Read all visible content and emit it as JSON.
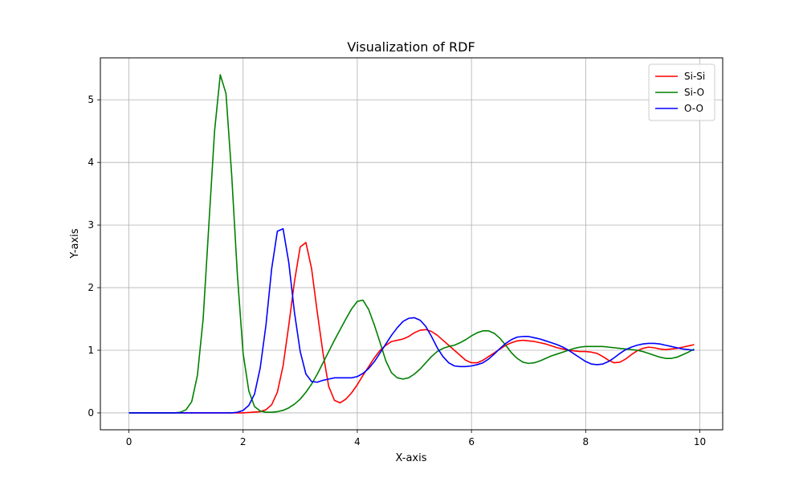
{
  "chart_data": {
    "type": "line",
    "title": "Visualization of RDF",
    "xlabel": "X-axis",
    "ylabel": "Y-axis",
    "xlim": [
      -0.5,
      10.4
    ],
    "ylim": [
      -0.27,
      5.67
    ],
    "xticks": [
      0,
      2,
      4,
      6,
      8,
      10
    ],
    "yticks": [
      0,
      1,
      2,
      3,
      4,
      5
    ],
    "grid": true,
    "legend_position": "top-right",
    "series": [
      {
        "name": "Si-Si",
        "color": "#ff0000",
        "points": [
          [
            0,
            0
          ],
          [
            1,
            0
          ],
          [
            2.0,
            0
          ],
          [
            2.3,
            0.02
          ],
          [
            2.4,
            0.05
          ],
          [
            2.5,
            0.13
          ],
          [
            2.6,
            0.33
          ],
          [
            2.7,
            0.75
          ],
          [
            2.8,
            1.4
          ],
          [
            2.9,
            2.1
          ],
          [
            3.0,
            2.65
          ],
          [
            3.1,
            2.72
          ],
          [
            3.2,
            2.3
          ],
          [
            3.3,
            1.6
          ],
          [
            3.4,
            0.95
          ],
          [
            3.5,
            0.42
          ],
          [
            3.6,
            0.2
          ],
          [
            3.7,
            0.16
          ],
          [
            3.8,
            0.22
          ],
          [
            3.9,
            0.32
          ],
          [
            4.0,
            0.45
          ],
          [
            4.1,
            0.6
          ],
          [
            4.2,
            0.74
          ],
          [
            4.3,
            0.88
          ],
          [
            4.4,
            1.0
          ],
          [
            4.5,
            1.08
          ],
          [
            4.6,
            1.14
          ],
          [
            4.7,
            1.16
          ],
          [
            4.8,
            1.18
          ],
          [
            4.9,
            1.22
          ],
          [
            5.0,
            1.28
          ],
          [
            5.1,
            1.32
          ],
          [
            5.2,
            1.33
          ],
          [
            5.3,
            1.3
          ],
          [
            5.4,
            1.24
          ],
          [
            5.5,
            1.16
          ],
          [
            5.6,
            1.08
          ],
          [
            5.7,
            1.0
          ],
          [
            5.8,
            0.92
          ],
          [
            5.9,
            0.84
          ],
          [
            6.0,
            0.8
          ],
          [
            6.1,
            0.8
          ],
          [
            6.2,
            0.84
          ],
          [
            6.3,
            0.9
          ],
          [
            6.4,
            0.96
          ],
          [
            6.5,
            1.02
          ],
          [
            6.6,
            1.08
          ],
          [
            6.7,
            1.12
          ],
          [
            6.8,
            1.15
          ],
          [
            6.9,
            1.16
          ],
          [
            7.0,
            1.15
          ],
          [
            7.1,
            1.14
          ],
          [
            7.2,
            1.12
          ],
          [
            7.3,
            1.1
          ],
          [
            7.4,
            1.07
          ],
          [
            7.5,
            1.04
          ],
          [
            7.6,
            1.02
          ],
          [
            7.7,
            1.0
          ],
          [
            7.8,
            0.99
          ],
          [
            7.9,
            0.98
          ],
          [
            8.0,
            0.98
          ],
          [
            8.1,
            0.97
          ],
          [
            8.2,
            0.95
          ],
          [
            8.3,
            0.9
          ],
          [
            8.4,
            0.84
          ],
          [
            8.5,
            0.8
          ],
          [
            8.6,
            0.81
          ],
          [
            8.7,
            0.86
          ],
          [
            8.8,
            0.93
          ],
          [
            8.9,
            0.99
          ],
          [
            9.0,
            1.03
          ],
          [
            9.1,
            1.05
          ],
          [
            9.2,
            1.04
          ],
          [
            9.3,
            1.02
          ],
          [
            9.4,
            1.01
          ],
          [
            9.5,
            1.02
          ],
          [
            9.6,
            1.03
          ],
          [
            9.7,
            1.05
          ],
          [
            9.8,
            1.07
          ],
          [
            9.9,
            1.09
          ]
        ]
      },
      {
        "name": "Si-O",
        "color": "#008000",
        "points": [
          [
            0,
            0
          ],
          [
            0.8,
            0
          ],
          [
            0.9,
            0.01
          ],
          [
            1.0,
            0.05
          ],
          [
            1.1,
            0.18
          ],
          [
            1.2,
            0.6
          ],
          [
            1.3,
            1.5
          ],
          [
            1.4,
            3.0
          ],
          [
            1.5,
            4.5
          ],
          [
            1.6,
            5.4
          ],
          [
            1.7,
            5.1
          ],
          [
            1.8,
            3.8
          ],
          [
            1.9,
            2.2
          ],
          [
            2.0,
            0.95
          ],
          [
            2.1,
            0.35
          ],
          [
            2.2,
            0.1
          ],
          [
            2.3,
            0.03
          ],
          [
            2.4,
            0.01
          ],
          [
            2.5,
            0.01
          ],
          [
            2.6,
            0.02
          ],
          [
            2.7,
            0.04
          ],
          [
            2.8,
            0.08
          ],
          [
            2.9,
            0.14
          ],
          [
            3.0,
            0.22
          ],
          [
            3.1,
            0.33
          ],
          [
            3.2,
            0.46
          ],
          [
            3.3,
            0.62
          ],
          [
            3.4,
            0.8
          ],
          [
            3.5,
            0.98
          ],
          [
            3.6,
            1.16
          ],
          [
            3.7,
            1.33
          ],
          [
            3.8,
            1.5
          ],
          [
            3.9,
            1.66
          ],
          [
            4.0,
            1.78
          ],
          [
            4.1,
            1.8
          ],
          [
            4.2,
            1.65
          ],
          [
            4.3,
            1.4
          ],
          [
            4.4,
            1.12
          ],
          [
            4.5,
            0.83
          ],
          [
            4.6,
            0.64
          ],
          [
            4.7,
            0.56
          ],
          [
            4.8,
            0.54
          ],
          [
            4.9,
            0.56
          ],
          [
            5.0,
            0.62
          ],
          [
            5.1,
            0.7
          ],
          [
            5.2,
            0.8
          ],
          [
            5.3,
            0.9
          ],
          [
            5.4,
            0.98
          ],
          [
            5.5,
            1.03
          ],
          [
            5.6,
            1.06
          ],
          [
            5.7,
            1.08
          ],
          [
            5.8,
            1.12
          ],
          [
            5.9,
            1.17
          ],
          [
            6.0,
            1.23
          ],
          [
            6.1,
            1.28
          ],
          [
            6.2,
            1.31
          ],
          [
            6.3,
            1.31
          ],
          [
            6.4,
            1.27
          ],
          [
            6.5,
            1.19
          ],
          [
            6.6,
            1.08
          ],
          [
            6.7,
            0.96
          ],
          [
            6.8,
            0.87
          ],
          [
            6.9,
            0.81
          ],
          [
            7.0,
            0.79
          ],
          [
            7.1,
            0.8
          ],
          [
            7.2,
            0.83
          ],
          [
            7.3,
            0.87
          ],
          [
            7.4,
            0.91
          ],
          [
            7.5,
            0.94
          ],
          [
            7.6,
            0.97
          ],
          [
            7.7,
            1.0
          ],
          [
            7.8,
            1.03
          ],
          [
            7.9,
            1.05
          ],
          [
            8.0,
            1.06
          ],
          [
            8.1,
            1.06
          ],
          [
            8.2,
            1.06
          ],
          [
            8.3,
            1.06
          ],
          [
            8.4,
            1.05
          ],
          [
            8.5,
            1.04
          ],
          [
            8.6,
            1.03
          ],
          [
            8.7,
            1.02
          ],
          [
            8.8,
            1.01
          ],
          [
            8.9,
            1.0
          ],
          [
            9.0,
            0.98
          ],
          [
            9.1,
            0.95
          ],
          [
            9.2,
            0.92
          ],
          [
            9.3,
            0.89
          ],
          [
            9.4,
            0.87
          ],
          [
            9.5,
            0.87
          ],
          [
            9.6,
            0.89
          ],
          [
            9.7,
            0.93
          ],
          [
            9.8,
            0.97
          ],
          [
            9.9,
            1.02
          ]
        ]
      },
      {
        "name": "O-O",
        "color": "#0000ff",
        "points": [
          [
            0,
            0
          ],
          [
            1,
            0
          ],
          [
            1.8,
            0
          ],
          [
            1.9,
            0.01
          ],
          [
            2.0,
            0.04
          ],
          [
            2.1,
            0.12
          ],
          [
            2.2,
            0.3
          ],
          [
            2.3,
            0.72
          ],
          [
            2.4,
            1.4
          ],
          [
            2.5,
            2.3
          ],
          [
            2.6,
            2.9
          ],
          [
            2.7,
            2.94
          ],
          [
            2.8,
            2.4
          ],
          [
            2.9,
            1.6
          ],
          [
            3.0,
            0.98
          ],
          [
            3.1,
            0.62
          ],
          [
            3.2,
            0.5
          ],
          [
            3.3,
            0.49
          ],
          [
            3.4,
            0.52
          ],
          [
            3.5,
            0.54
          ],
          [
            3.6,
            0.56
          ],
          [
            3.7,
            0.56
          ],
          [
            3.8,
            0.56
          ],
          [
            3.9,
            0.56
          ],
          [
            4.0,
            0.58
          ],
          [
            4.1,
            0.63
          ],
          [
            4.2,
            0.71
          ],
          [
            4.3,
            0.82
          ],
          [
            4.4,
            0.96
          ],
          [
            4.5,
            1.1
          ],
          [
            4.6,
            1.24
          ],
          [
            4.7,
            1.36
          ],
          [
            4.8,
            1.46
          ],
          [
            4.9,
            1.51
          ],
          [
            5.0,
            1.52
          ],
          [
            5.1,
            1.48
          ],
          [
            5.2,
            1.38
          ],
          [
            5.3,
            1.22
          ],
          [
            5.4,
            1.04
          ],
          [
            5.5,
            0.9
          ],
          [
            5.6,
            0.8
          ],
          [
            5.7,
            0.75
          ],
          [
            5.8,
            0.74
          ],
          [
            5.9,
            0.74
          ],
          [
            6.0,
            0.75
          ],
          [
            6.1,
            0.77
          ],
          [
            6.2,
            0.8
          ],
          [
            6.3,
            0.86
          ],
          [
            6.4,
            0.94
          ],
          [
            6.5,
            1.03
          ],
          [
            6.6,
            1.11
          ],
          [
            6.7,
            1.17
          ],
          [
            6.8,
            1.21
          ],
          [
            6.9,
            1.22
          ],
          [
            7.0,
            1.22
          ],
          [
            7.1,
            1.2
          ],
          [
            7.2,
            1.18
          ],
          [
            7.3,
            1.15
          ],
          [
            7.4,
            1.12
          ],
          [
            7.5,
            1.09
          ],
          [
            7.6,
            1.05
          ],
          [
            7.7,
            1.0
          ],
          [
            7.8,
            0.94
          ],
          [
            7.9,
            0.88
          ],
          [
            8.0,
            0.82
          ],
          [
            8.1,
            0.78
          ],
          [
            8.2,
            0.77
          ],
          [
            8.3,
            0.78
          ],
          [
            8.4,
            0.82
          ],
          [
            8.5,
            0.88
          ],
          [
            8.6,
            0.95
          ],
          [
            8.7,
            1.01
          ],
          [
            8.8,
            1.05
          ],
          [
            8.9,
            1.08
          ],
          [
            9.0,
            1.1
          ],
          [
            9.1,
            1.11
          ],
          [
            9.2,
            1.11
          ],
          [
            9.3,
            1.1
          ],
          [
            9.4,
            1.08
          ],
          [
            9.5,
            1.06
          ],
          [
            9.6,
            1.04
          ],
          [
            9.7,
            1.02
          ],
          [
            9.8,
            1.01
          ],
          [
            9.9,
            1.0
          ]
        ]
      }
    ]
  }
}
